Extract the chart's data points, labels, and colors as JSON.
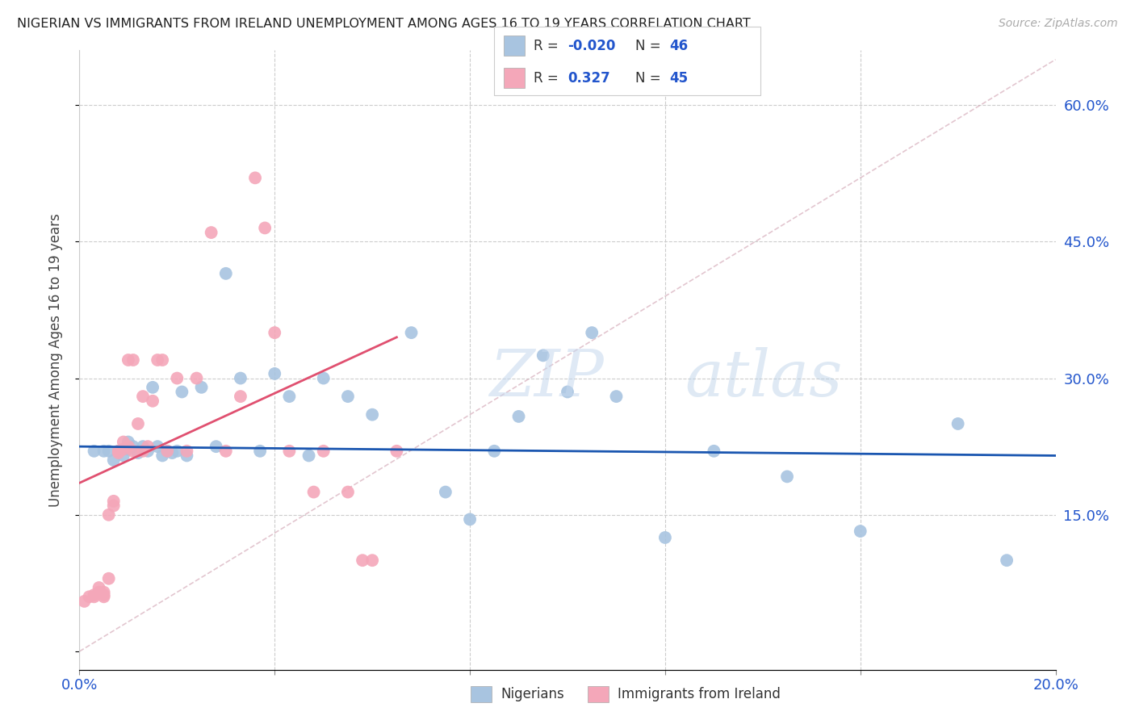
{
  "title": "NIGERIAN VS IMMIGRANTS FROM IRELAND UNEMPLOYMENT AMONG AGES 16 TO 19 YEARS CORRELATION CHART",
  "source": "Source: ZipAtlas.com",
  "ylabel": "Unemployment Among Ages 16 to 19 years",
  "xlim": [
    0.0,
    0.2
  ],
  "ylim": [
    -0.02,
    0.66
  ],
  "blue_color": "#a8c4e0",
  "pink_color": "#f4a7b9",
  "blue_line_color": "#1a56b0",
  "pink_line_color": "#e05070",
  "watermark_zip": "ZIP",
  "watermark_atlas": "atlas",
  "background_color": "#ffffff",
  "grid_color": "#cccccc",
  "blue_scatter_x": [
    0.003,
    0.005,
    0.006,
    0.007,
    0.008,
    0.009,
    0.01,
    0.01,
    0.011,
    0.012,
    0.013,
    0.014,
    0.015,
    0.016,
    0.017,
    0.018,
    0.019,
    0.02,
    0.021,
    0.022,
    0.025,
    0.028,
    0.03,
    0.033,
    0.037,
    0.04,
    0.043,
    0.047,
    0.05,
    0.055,
    0.06,
    0.068,
    0.075,
    0.08,
    0.085,
    0.09,
    0.095,
    0.1,
    0.105,
    0.11,
    0.12,
    0.13,
    0.145,
    0.16,
    0.18,
    0.19
  ],
  "blue_scatter_y": [
    0.22,
    0.22,
    0.22,
    0.21,
    0.22,
    0.215,
    0.222,
    0.23,
    0.225,
    0.218,
    0.225,
    0.22,
    0.29,
    0.225,
    0.215,
    0.22,
    0.218,
    0.22,
    0.285,
    0.215,
    0.29,
    0.225,
    0.415,
    0.3,
    0.22,
    0.305,
    0.28,
    0.215,
    0.3,
    0.28,
    0.26,
    0.35,
    0.175,
    0.145,
    0.22,
    0.258,
    0.325,
    0.285,
    0.35,
    0.28,
    0.125,
    0.22,
    0.192,
    0.132,
    0.25,
    0.1
  ],
  "pink_scatter_x": [
    0.001,
    0.002,
    0.003,
    0.003,
    0.004,
    0.004,
    0.005,
    0.005,
    0.005,
    0.006,
    0.006,
    0.007,
    0.007,
    0.008,
    0.008,
    0.009,
    0.009,
    0.01,
    0.01,
    0.011,
    0.011,
    0.012,
    0.013,
    0.013,
    0.014,
    0.015,
    0.016,
    0.017,
    0.018,
    0.02,
    0.022,
    0.024,
    0.027,
    0.03,
    0.033,
    0.036,
    0.038,
    0.04,
    0.043,
    0.048,
    0.05,
    0.055,
    0.058,
    0.06,
    0.065
  ],
  "pink_scatter_y": [
    0.055,
    0.06,
    0.06,
    0.062,
    0.065,
    0.07,
    0.06,
    0.065,
    0.062,
    0.08,
    0.15,
    0.16,
    0.165,
    0.22,
    0.218,
    0.222,
    0.23,
    0.225,
    0.32,
    0.22,
    0.32,
    0.25,
    0.22,
    0.28,
    0.225,
    0.275,
    0.32,
    0.32,
    0.22,
    0.3,
    0.22,
    0.3,
    0.46,
    0.22,
    0.28,
    0.52,
    0.465,
    0.35,
    0.22,
    0.175,
    0.22,
    0.175,
    0.1,
    0.1,
    0.22
  ]
}
